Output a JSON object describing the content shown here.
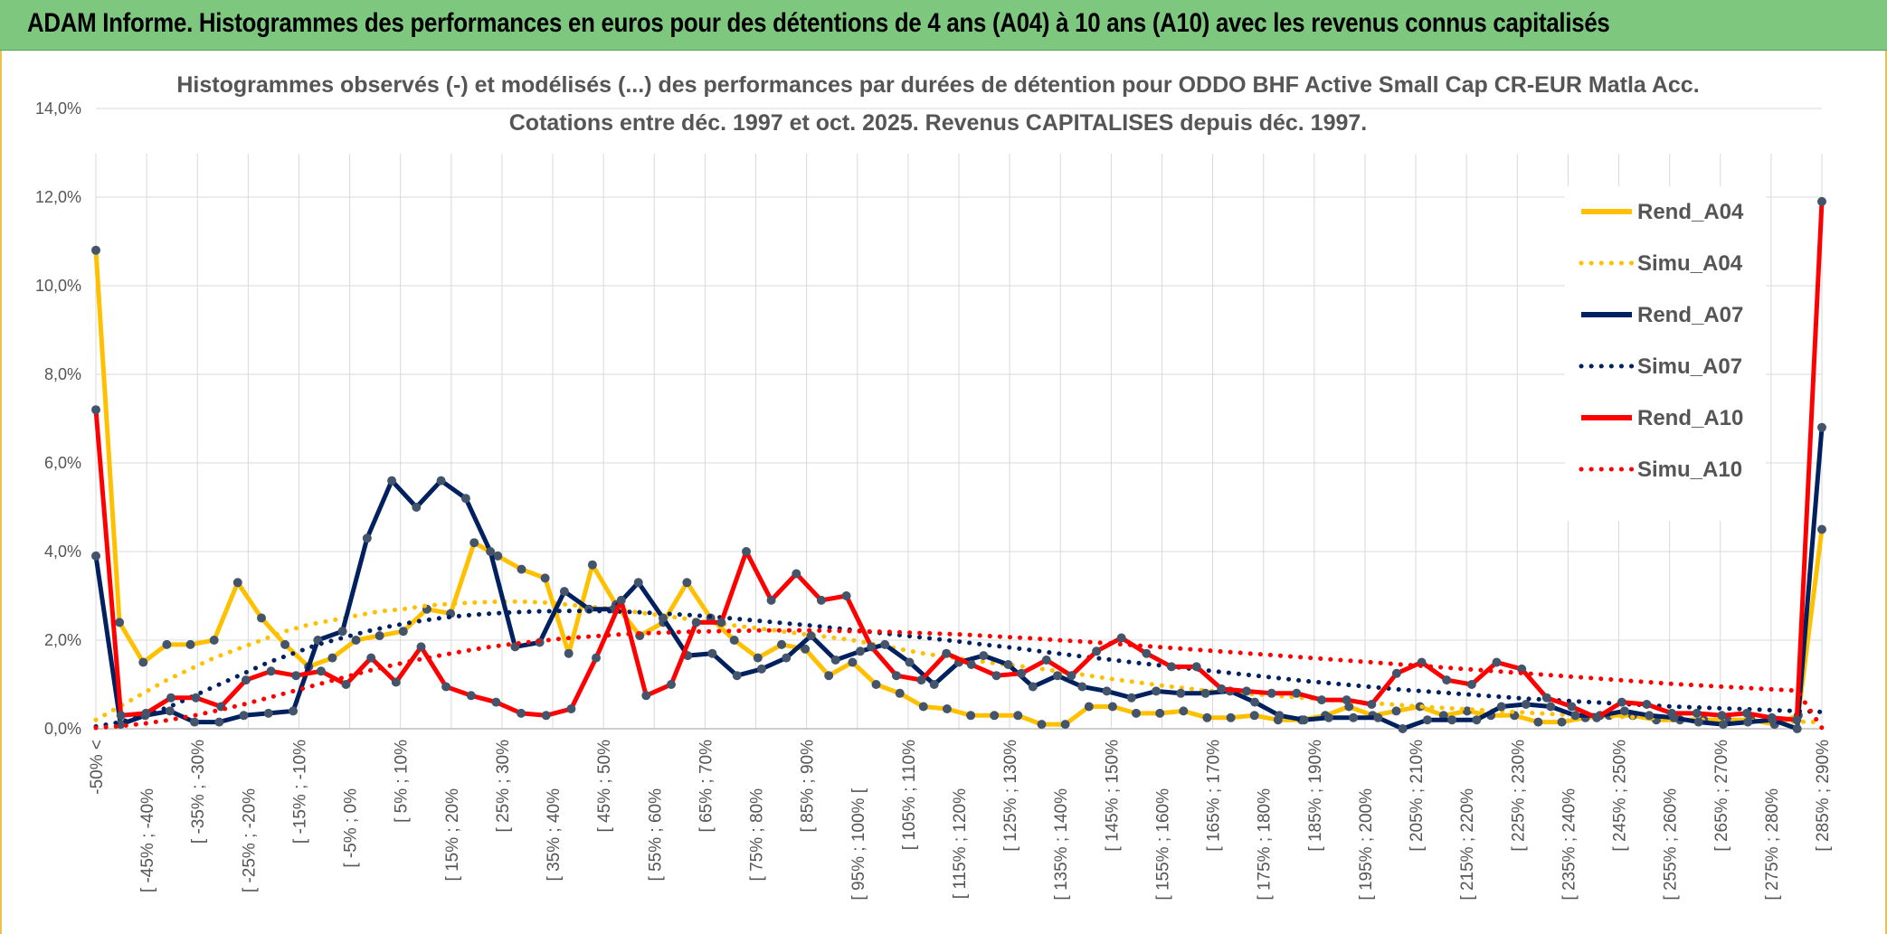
{
  "banner": {
    "title": "ADAM Informe. Histogrammes des performances en euros pour des détentions de 4 ans (A04) à 10 ans (A10) avec les revenus connus capitalisés"
  },
  "chart_data": {
    "type": "line",
    "title_line1": "Histogrammes observés (-) et modélisés (...) des performances par durées de détention pour ODDO BHF Active Small Cap CR-EUR Matla Acc.",
    "title_line2": "Cotations entre déc. 1997 et oct. 2025. Revenus CAPITALISES depuis déc. 1997.",
    "ylim": [
      0,
      14
    ],
    "yticks": [
      "0,0%",
      "2,0%",
      "4,0%",
      "6,0%",
      "8,0%",
      "10,0%",
      "12,0%",
      "14,0%"
    ],
    "grid": true,
    "legend_position": "right",
    "x_labels": [
      "-50% <",
      "[ -45% ; -40%",
      "[ -35% ; -30%",
      "[ -25% ; -20%",
      "[ -15% ; -10%",
      "[ -5% ; 0%",
      "[ 5% ; 10%",
      "[ 15% ; 20%",
      "[ 25% ; 30%",
      "[ 35% ; 40%",
      "[ 45% ; 50%",
      "[ 55% ; 60%",
      "[ 65% ; 70%",
      "[ 75% ; 80%",
      "[ 85% ; 90%",
      "[ 95% ; 100% [",
      "[ 105% ; 110%",
      "[ 115% ; 120%",
      "[ 125% ; 130%",
      "[ 135% ; 140%",
      "[ 145% ; 150%",
      "[ 155% ; 160%",
      "[ 165% ; 170%",
      "[ 175% ; 180%",
      "[ 185% ; 190%",
      "[ 195% ; 200%",
      "[ 205% ; 210%",
      "[ 215% ; 220%",
      "[ 225% ; 230%",
      "[ 235% ; 240%",
      "[ 245% ; 250%",
      "[ 255% ; 260%",
      "[ 265% ; 270%",
      "[ 275% ; 280%",
      "[ 285% ; 290%"
    ],
    "series": [
      {
        "name": "Rend_A04",
        "color": "#ffc000",
        "style": "solid",
        "values": [
          10.8,
          2.4,
          1.5,
          1.9,
          1.9,
          2.0,
          3.3,
          2.5,
          1.9,
          1.4,
          1.6,
          2.0,
          2.1,
          2.2,
          2.7,
          2.6,
          4.2,
          3.9,
          3.6,
          3.4,
          1.7,
          3.7,
          2.8,
          2.1,
          2.4,
          3.3,
          2.5,
          2.0,
          1.6,
          1.9,
          1.8,
          1.2,
          1.5,
          1.0,
          0.8,
          0.5,
          0.45,
          0.3,
          0.3,
          0.3,
          0.1,
          0.1,
          0.5,
          0.5,
          0.35,
          0.35,
          0.4,
          0.25,
          0.25,
          0.3,
          0.2,
          0.2,
          0.3,
          0.5,
          0.3,
          0.4,
          0.5,
          0.3,
          0.4,
          0.3,
          0.3,
          0.15,
          0.15,
          0.25,
          0.3,
          0.3,
          0.2,
          0.2,
          0.2,
          0.2,
          0.2,
          0.1,
          0.3,
          4.5
        ]
      },
      {
        "name": "Simu_A04",
        "color": "#ffc000",
        "style": "dotted",
        "values": [
          0.2,
          0.5,
          0.8,
          1.1,
          1.35,
          1.6,
          1.8,
          2.0,
          2.2,
          2.35,
          2.45,
          2.55,
          2.65,
          2.7,
          2.78,
          2.82,
          2.85,
          2.87,
          2.87,
          2.85,
          2.8,
          2.75,
          2.7,
          2.62,
          2.55,
          2.48,
          2.4,
          2.33,
          2.27,
          2.2,
          2.13,
          2.07,
          2.0,
          1.9,
          1.8,
          1.7,
          1.62,
          1.55,
          1.48,
          1.42,
          1.35,
          1.28,
          1.2,
          1.12,
          1.05,
          0.98,
          0.92,
          0.86,
          0.82,
          0.78,
          0.74,
          0.7,
          0.66,
          0.62,
          0.58,
          0.54,
          0.5,
          0.47,
          0.44,
          0.41,
          0.38,
          0.35,
          0.32,
          0.3,
          0.28,
          0.26,
          0.24,
          0.22,
          0.2,
          0.19,
          0.18,
          0.17,
          0.16,
          0.15
        ]
      },
      {
        "name": "Rend_A07",
        "color": "#002060",
        "style": "solid",
        "values": [
          3.9,
          0.1,
          0.3,
          0.4,
          0.15,
          0.15,
          0.3,
          0.35,
          0.4,
          2.0,
          2.2,
          4.3,
          5.6,
          5.0,
          5.6,
          5.2,
          4.0,
          1.85,
          1.95,
          3.1,
          2.7,
          2.7,
          3.3,
          2.5,
          1.65,
          1.7,
          1.2,
          1.35,
          1.6,
          2.1,
          1.55,
          1.75,
          1.9,
          1.5,
          1.0,
          1.5,
          1.65,
          1.45,
          0.95,
          1.2,
          0.95,
          0.85,
          0.7,
          0.85,
          0.8,
          0.8,
          0.85,
          0.6,
          0.3,
          0.2,
          0.25,
          0.25,
          0.25,
          0.0,
          0.2,
          0.2,
          0.2,
          0.5,
          0.55,
          0.5,
          0.3,
          0.3,
          0.4,
          0.3,
          0.25,
          0.15,
          0.1,
          0.15,
          0.2,
          0.0,
          6.8
        ]
      },
      {
        "name": "Simu_A07",
        "color": "#002060",
        "style": "dotted",
        "values": [
          0.05,
          0.15,
          0.3,
          0.5,
          0.75,
          1.0,
          1.25,
          1.5,
          1.7,
          1.9,
          2.05,
          2.2,
          2.32,
          2.42,
          2.5,
          2.56,
          2.6,
          2.63,
          2.65,
          2.66,
          2.66,
          2.65,
          2.63,
          2.6,
          2.57,
          2.53,
          2.48,
          2.43,
          2.38,
          2.33,
          2.27,
          2.21,
          2.15,
          2.09,
          2.03,
          1.97,
          1.9,
          1.84,
          1.77,
          1.7,
          1.63,
          1.57,
          1.5,
          1.44,
          1.38,
          1.32,
          1.26,
          1.2,
          1.14,
          1.08,
          1.03,
          0.98,
          0.93,
          0.88,
          0.84,
          0.8,
          0.76,
          0.72,
          0.68,
          0.65,
          0.62,
          0.59,
          0.56,
          0.53,
          0.5,
          0.48,
          0.46,
          0.44,
          0.42,
          0.4,
          0.38
        ]
      },
      {
        "name": "Rend_A10",
        "color": "#ff0000",
        "style": "solid",
        "values": [
          7.2,
          0.3,
          0.35,
          0.7,
          0.7,
          0.5,
          1.1,
          1.3,
          1.2,
          1.3,
          1.0,
          1.6,
          1.05,
          1.85,
          0.95,
          0.75,
          0.6,
          0.35,
          0.3,
          0.45,
          1.6,
          2.9,
          0.75,
          1.0,
          2.4,
          2.4,
          4.0,
          2.9,
          3.5,
          2.9,
          3.0,
          1.85,
          1.2,
          1.1,
          1.7,
          1.45,
          1.2,
          1.25,
          1.55,
          1.2,
          1.75,
          2.05,
          1.7,
          1.4,
          1.4,
          0.9,
          0.85,
          0.8,
          0.8,
          0.65,
          0.65,
          0.55,
          1.25,
          1.5,
          1.1,
          1.0,
          1.5,
          1.35,
          0.7,
          0.5,
          0.25,
          0.6,
          0.55,
          0.35,
          0.35,
          0.3,
          0.35,
          0.25,
          0.2,
          11.9
        ]
      },
      {
        "name": "Simu_A10",
        "color": "#ff0000",
        "style": "dotted",
        "values": [
          0.02,
          0.06,
          0.12,
          0.2,
          0.3,
          0.42,
          0.55,
          0.7,
          0.85,
          1.0,
          1.15,
          1.3,
          1.43,
          1.55,
          1.66,
          1.76,
          1.85,
          1.92,
          1.98,
          2.04,
          2.08,
          2.12,
          2.15,
          2.17,
          2.19,
          2.2,
          2.21,
          2.22,
          2.22,
          2.22,
          2.21,
          2.2,
          2.19,
          2.17,
          2.15,
          2.13,
          2.1,
          2.07,
          2.04,
          2.0,
          1.97,
          1.93,
          1.89,
          1.85,
          1.81,
          1.77,
          1.73,
          1.69,
          1.65,
          1.61,
          1.57,
          1.53,
          1.49,
          1.45,
          1.41,
          1.37,
          1.33,
          1.29,
          1.25,
          1.21,
          1.17,
          1.13,
          1.09,
          1.05,
          1.01,
          0.98,
          0.95,
          0.92,
          0.89,
          0.86,
          0.02
        ]
      }
    ]
  }
}
